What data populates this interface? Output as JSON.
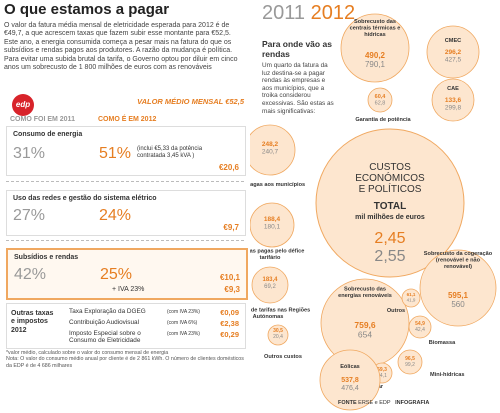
{
  "header": {
    "title": "O que estamos a pagar",
    "intro": "O valor da fatura média mensal de eletricidade esperada para 2012 é de €49,7, a que acrescem taxas que fazem subir esse montante para €52,5. Este ano, a energia consumida começa a pesar mais na fatura do que os subsídios e rendas pagos aos produtores. A razão da mudança é política. Para evitar uma subida brutal da tarifa, o Governo optou por diluir em cinco anos um sobrecusto de 1 800 milhões de euros com as renováveis"
  },
  "fatura": {
    "logo": "edp",
    "valor_label": "VALOR MÉDIO MENSAL",
    "valor": "€52,5",
    "col_2011": "COMO FOI EM 2011",
    "col_2012": "COMO É EM 2012",
    "sections": [
      {
        "label": "Consumo de energia",
        "pct_2011": "31%",
        "pct_2012": "51%",
        "note": "(inclui €5,33 da potência contratada 3,45 kVA )",
        "value": "€20,6"
      },
      {
        "label": "Uso das redes e gestão do sistema elétrico",
        "pct_2011": "27%",
        "pct_2012": "24%",
        "value": "€9,7"
      },
      {
        "label": "Subsídios e rendas",
        "pct_2011": "42%",
        "pct_2012": "25%",
        "value": "€10,1"
      }
    ],
    "iva": {
      "label": "+ IVA 23%",
      "value": "€9,3"
    }
  },
  "outras": {
    "title": "Outras taxas e impostos 2012",
    "rows": [
      {
        "label": "Taxa Exploração da DGEG",
        "iva": "(com IVA 23%)",
        "value": "€0,09"
      },
      {
        "label": "Contribuição Audiovisual",
        "iva": "(com IVA 6%)",
        "value": "€2,38"
      },
      {
        "label": "Imposto Especial sobre o Consumo de Eletricidade",
        "iva": "(com IVA 23%)",
        "value": "€0,29"
      }
    ]
  },
  "notes": [
    "*valor médio, calculado sobre o valor do consumo mensal de energia",
    "Nota: O valor do consumo médio anual por cliente é de 2 861 kWh. O número de clientes domésticos da EDP é de 4 686 milhares"
  ],
  "rendas": {
    "year_2011": "2011",
    "year_2012": "2012",
    "heading": "Para onde vão as rendas",
    "text": "Um quarto da fatura da luz destina-se a pagar rendas às empresas e aos municípios, que a troika considerou excessivas. São estas as mais significativas:",
    "center": {
      "title": "CUSTOS ECONÓMICOS E POLÍTICOS",
      "total": "TOTAL",
      "unit": "mil milhões de euros",
      "v2011": "2,45",
      "v2012": "2,55"
    },
    "bubbles": [
      {
        "label": "Sobrecusto das centrais térmicas e hídricas",
        "v2011": "490,2",
        "v2012": "790,1"
      },
      {
        "label": "CMEC",
        "v2011": "296,2",
        "v2012": "427,5"
      },
      {
        "label": "CAE",
        "v2011": "133,6",
        "v2012": "299,8"
      },
      {
        "label": "Garantia de potência",
        "v2011": "60,4",
        "v2012": "62,8"
      },
      {
        "label": "Rendas pagas aos municípios",
        "v2011": "248,2",
        "v2012": "240,7"
      },
      {
        "label": "Rendas pagas pelo défice tarifário",
        "v2011": "188,4",
        "v2012": "180,1"
      },
      {
        "label": "Subsídio de tarifas nas Regiões Autónomas",
        "v2011": "183,4",
        "v2012": "69,2"
      },
      {
        "label": "Outros custos",
        "v2011": "30,5",
        "v2012": "20,4"
      },
      {
        "label": "Sobrecusto da cogeração (renovável e não renovável)",
        "v2011": "595,1",
        "v2012": "560"
      },
      {
        "label": "Sobrecusto das energias renováveis",
        "v2011": "759,6",
        "v2012": "654"
      },
      {
        "label": "Outros",
        "v2011": "61,1",
        "v2012": "41,9"
      },
      {
        "label": "Biomassa",
        "v2011": "54,9",
        "v2012": "42,4"
      },
      {
        "label": "Solar",
        "v2011": "59,3",
        "v2012": "84,1"
      },
      {
        "label": "Mini-hídricas",
        "v2011": "96,5",
        "v2012": "99,2"
      },
      {
        "label": "Eólicas",
        "v2011": "537,8",
        "v2012": "476,4"
      }
    ],
    "source_label": "FONTE",
    "source": "ERSE e EDP",
    "credit": "INFOGRAFIA"
  }
}
